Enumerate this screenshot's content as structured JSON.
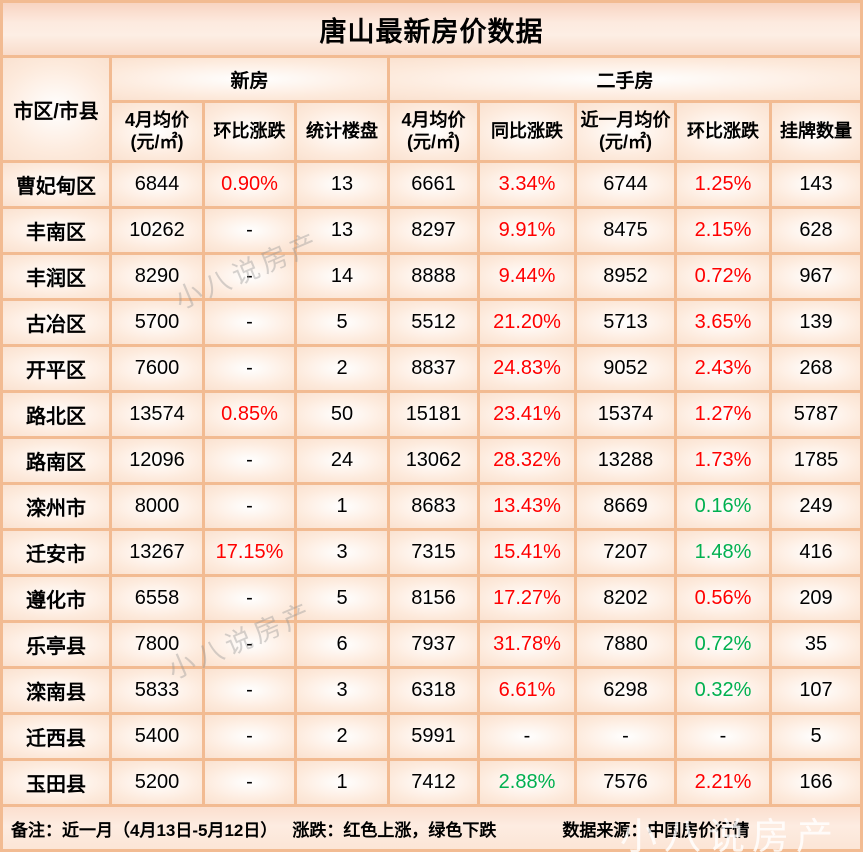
{
  "title": "唐山最新房价数据",
  "chart_data": {
    "type": "table",
    "title": "唐山最新房价数据",
    "corner_header": "市区/市县",
    "column_groups": [
      {
        "label": "新房",
        "span": 3
      },
      {
        "label": "二手房",
        "span": 5
      }
    ],
    "columns": [
      "4月均价(元/㎡)",
      "环比涨跌",
      "统计楼盘",
      "4月均价(元/㎡)",
      "同比涨跌",
      "近一月均价(元/㎡)",
      "环比涨跌",
      "挂牌数量"
    ],
    "rows": [
      {
        "district": "曹妃甸区",
        "values": [
          "6844",
          "0.90%",
          "13",
          "6661",
          "3.34%",
          "6744",
          "1.25%",
          "143"
        ],
        "colors": [
          null,
          "red",
          null,
          null,
          "red",
          null,
          "red",
          null
        ]
      },
      {
        "district": "丰南区",
        "values": [
          "10262",
          "-",
          "13",
          "8297",
          "9.91%",
          "8475",
          "2.15%",
          "628"
        ],
        "colors": [
          null,
          null,
          null,
          null,
          "red",
          null,
          "red",
          null
        ]
      },
      {
        "district": "丰润区",
        "values": [
          "8290",
          "-",
          "14",
          "8888",
          "9.44%",
          "8952",
          "0.72%",
          "967"
        ],
        "colors": [
          null,
          null,
          null,
          null,
          "red",
          null,
          "red",
          null
        ]
      },
      {
        "district": "古冶区",
        "values": [
          "5700",
          "-",
          "5",
          "5512",
          "21.20%",
          "5713",
          "3.65%",
          "139"
        ],
        "colors": [
          null,
          null,
          null,
          null,
          "red",
          null,
          "red",
          null
        ]
      },
      {
        "district": "开平区",
        "values": [
          "7600",
          "-",
          "2",
          "8837",
          "24.83%",
          "9052",
          "2.43%",
          "268"
        ],
        "colors": [
          null,
          null,
          null,
          null,
          "red",
          null,
          "red",
          null
        ]
      },
      {
        "district": "路北区",
        "values": [
          "13574",
          "0.85%",
          "50",
          "15181",
          "23.41%",
          "15374",
          "1.27%",
          "5787"
        ],
        "colors": [
          null,
          "red",
          null,
          null,
          "red",
          null,
          "red",
          null
        ]
      },
      {
        "district": "路南区",
        "values": [
          "12096",
          "-",
          "24",
          "13062",
          "28.32%",
          "13288",
          "1.73%",
          "1785"
        ],
        "colors": [
          null,
          null,
          null,
          null,
          "red",
          null,
          "red",
          null
        ]
      },
      {
        "district": "滦州市",
        "values": [
          "8000",
          "-",
          "1",
          "8683",
          "13.43%",
          "8669",
          "0.16%",
          "249"
        ],
        "colors": [
          null,
          null,
          null,
          null,
          "red",
          null,
          "green",
          null
        ]
      },
      {
        "district": "迁安市",
        "values": [
          "13267",
          "17.15%",
          "3",
          "7315",
          "15.41%",
          "7207",
          "1.48%",
          "416"
        ],
        "colors": [
          null,
          "red",
          null,
          null,
          "red",
          null,
          "green",
          null
        ]
      },
      {
        "district": "遵化市",
        "values": [
          "6558",
          "-",
          "5",
          "8156",
          "17.27%",
          "8202",
          "0.56%",
          "209"
        ],
        "colors": [
          null,
          null,
          null,
          null,
          "red",
          null,
          "red",
          null
        ]
      },
      {
        "district": "乐亭县",
        "values": [
          "7800",
          "-",
          "6",
          "7937",
          "31.78%",
          "7880",
          "0.72%",
          "35"
        ],
        "colors": [
          null,
          null,
          null,
          null,
          "red",
          null,
          "green",
          null
        ]
      },
      {
        "district": "滦南县",
        "values": [
          "5833",
          "-",
          "3",
          "6318",
          "6.61%",
          "6298",
          "0.32%",
          "107"
        ],
        "colors": [
          null,
          null,
          null,
          null,
          "red",
          null,
          "green",
          null
        ]
      },
      {
        "district": "迁西县",
        "values": [
          "5400",
          "-",
          "2",
          "5991",
          "-",
          "-",
          "-",
          "5"
        ],
        "colors": [
          null,
          null,
          null,
          null,
          null,
          null,
          null,
          null
        ]
      },
      {
        "district": "玉田县",
        "values": [
          "5200",
          "-",
          "1",
          "7412",
          "2.88%",
          "7576",
          "2.21%",
          "166"
        ],
        "colors": [
          null,
          null,
          null,
          null,
          "green",
          null,
          "red",
          null
        ]
      }
    ],
    "legend": "红色上涨，绿色下跌",
    "colors": {
      "up_red": "#ff0000",
      "down_green": "#00b050",
      "border": "#f2bb92",
      "cell_bg": "#fbe3d0"
    }
  },
  "footer": {
    "note": "备注：近一月（4月13日-5月12日）",
    "legend": "涨跌：红色上涨，绿色下跌",
    "source": "数据来源：中国房价行情"
  },
  "watermark": {
    "text": "小八说房产"
  }
}
